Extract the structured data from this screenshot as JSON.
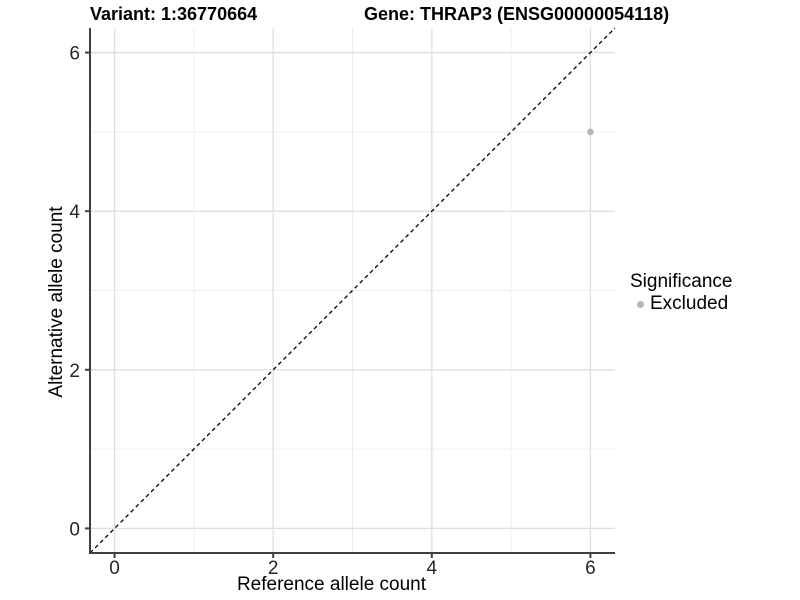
{
  "chart_data": {
    "type": "scatter",
    "titles": {
      "left": "Variant: 1:36770664",
      "right": "Gene: THRAP3 (ENSG00000054118)"
    },
    "xlabel": "Reference allele count",
    "ylabel": "Alternative allele count",
    "xlim": [
      -0.31,
      6.31
    ],
    "ylim": [
      -0.31,
      6.31
    ],
    "x_ticks": [
      0,
      2,
      4,
      6
    ],
    "y_ticks": [
      0,
      2,
      4,
      6
    ],
    "x_minor_ticks": [
      1,
      3,
      5
    ],
    "y_minor_ticks": [
      1,
      3,
      5
    ],
    "grid": true,
    "points": [
      {
        "x": 6,
        "y": 5,
        "series": "Excluded"
      }
    ],
    "reference_line": {
      "equation": "y = x",
      "style": "dashed",
      "color": "#000000"
    },
    "legend": {
      "title": "Significance",
      "position": "right",
      "items": [
        {
          "label": "Excluded",
          "color": "#b5b5b5",
          "marker": "circle"
        }
      ]
    },
    "colors": {
      "background": "#ffffff",
      "grid_major": "#dfdfdf",
      "grid_minor": "#ededed",
      "axis_line": "#404040",
      "tick_label": "#262626",
      "point": "#b5b5b5"
    }
  }
}
